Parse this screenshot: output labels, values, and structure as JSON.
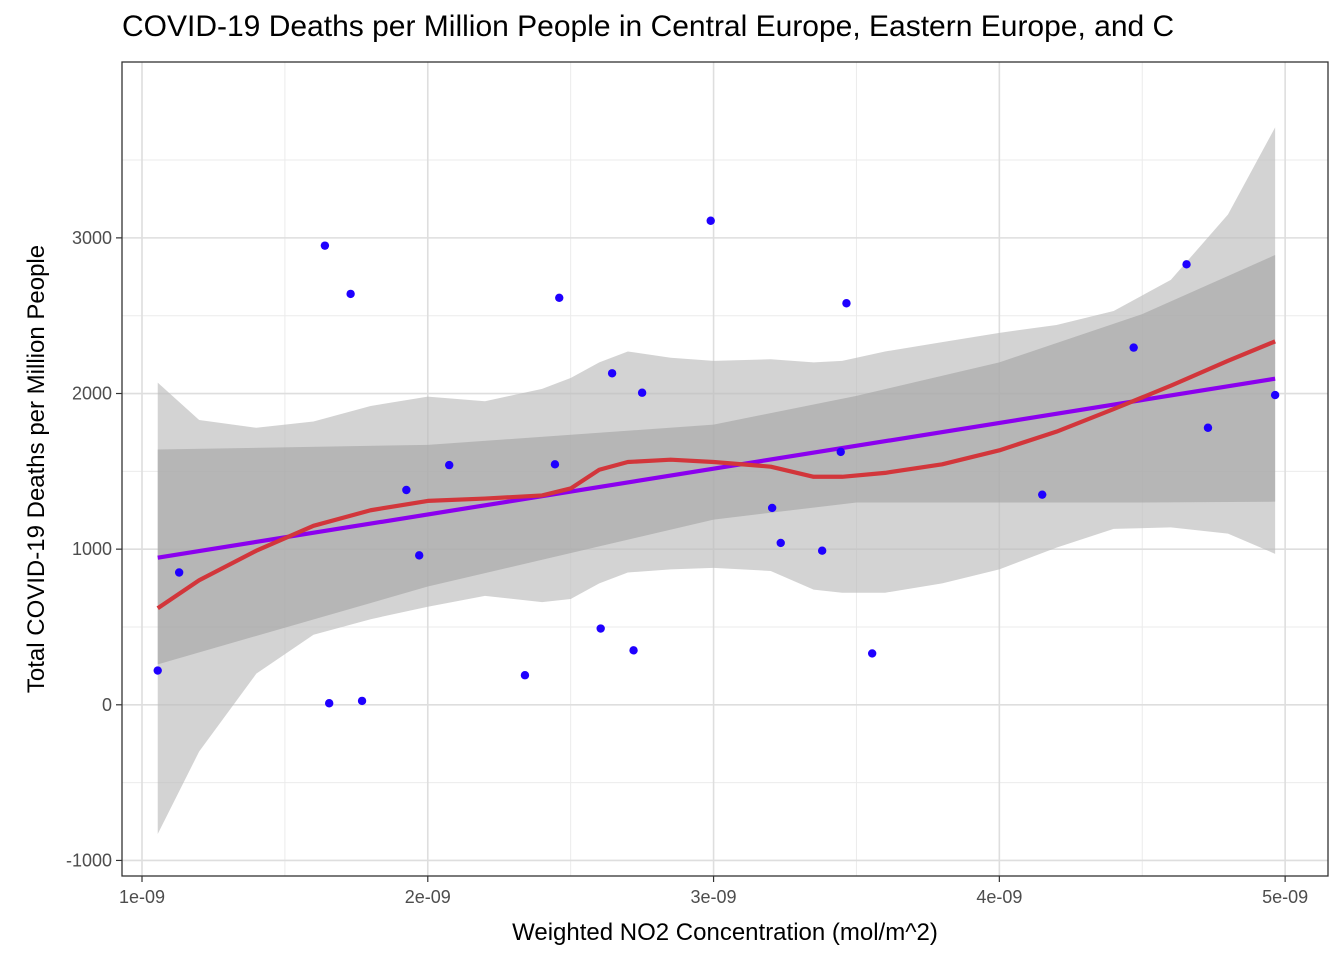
{
  "chart_data": {
    "type": "scatter",
    "title": "COVID-19 Deaths per Million People in Central Europe, Eastern Europe, and C",
    "xlabel": "Weighted NO2 Concentration (mol/m^2)",
    "ylabel": "Total COVID-19 Deaths per Million People",
    "xlim": [
      9.3e-10,
      5.15e-09
    ],
    "ylim": [
      -1100,
      4130
    ],
    "x_ticks": [
      1e-09,
      2e-09,
      3e-09,
      4e-09,
      5e-09
    ],
    "x_tick_labels": [
      "1e-09",
      "2e-09",
      "3e-09",
      "4e-09",
      "5e-09"
    ],
    "y_ticks": [
      -1000,
      0,
      1000,
      2000,
      3000
    ],
    "y_tick_labels": [
      "-1000",
      "0",
      "1000",
      "2000",
      "3000"
    ],
    "grid": true,
    "points": {
      "color": "#1f00ff",
      "x": [
        1.055e-09,
        1.13e-09,
        1.64e-09,
        1.655e-09,
        1.73e-09,
        1.77e-09,
        1.925e-09,
        1.97e-09,
        2.075e-09,
        2.34e-09,
        2.445e-09,
        2.46e-09,
        2.605e-09,
        2.645e-09,
        2.72e-09,
        2.75e-09,
        2.99e-09,
        3.205e-09,
        3.235e-09,
        3.38e-09,
        3.445e-09,
        3.465e-09,
        3.555e-09,
        4.15e-09,
        4.47e-09,
        4.655e-09,
        4.73e-09,
        4.965e-09
      ],
      "y": [
        220,
        850,
        2950,
        10,
        2640,
        25,
        1380,
        960,
        1540,
        190,
        1545,
        2615,
        490,
        2130,
        350,
        2005,
        3110,
        1265,
        1040,
        990,
        1625,
        2580,
        330,
        1350,
        2295,
        2830,
        1780,
        1990
      ]
    },
    "series": [
      {
        "kind": "linear-fit",
        "color": "#8b00ee",
        "x": [
          1.055e-09,
          4.965e-09
        ],
        "y": [
          945,
          2095
        ]
      },
      {
        "kind": "loess-fit",
        "color": "#d2363b",
        "x": [
          1.055e-09,
          1.2e-09,
          1.4e-09,
          1.6e-09,
          1.8e-09,
          2e-09,
          2.2e-09,
          2.4e-09,
          2.5e-09,
          2.6e-09,
          2.7e-09,
          2.85e-09,
          3e-09,
          3.2e-09,
          3.35e-09,
          3.45e-09,
          3.6e-09,
          3.8e-09,
          4e-09,
          4.2e-09,
          4.4e-09,
          4.6e-09,
          4.8e-09,
          4.965e-09
        ],
        "y": [
          620,
          800,
          990,
          1150,
          1250,
          1310,
          1325,
          1345,
          1390,
          1510,
          1560,
          1575,
          1560,
          1530,
          1465,
          1465,
          1490,
          1545,
          1635,
          1755,
          1900,
          2050,
          2210,
          2335
        ]
      }
    ],
    "bands": [
      {
        "kind": "loess-confidence",
        "color": "#bbbbbb",
        "x": [
          1.055e-09,
          1.2e-09,
          1.4e-09,
          1.6e-09,
          1.8e-09,
          2e-09,
          2.2e-09,
          2.4e-09,
          2.5e-09,
          2.6e-09,
          2.7e-09,
          2.85e-09,
          3e-09,
          3.2e-09,
          3.35e-09,
          3.45e-09,
          3.6e-09,
          3.8e-09,
          4e-09,
          4.2e-09,
          4.4e-09,
          4.6e-09,
          4.8e-09,
          4.965e-09
        ],
        "upper": [
          2070,
          1830,
          1780,
          1820,
          1920,
          1980,
          1950,
          2030,
          2100,
          2200,
          2270,
          2230,
          2210,
          2220,
          2200,
          2210,
          2270,
          2330,
          2390,
          2440,
          2530,
          2730,
          3150,
          3710
        ],
        "lower": [
          -830,
          -300,
          200,
          450,
          550,
          630,
          700,
          660,
          680,
          780,
          850,
          870,
          880,
          860,
          740,
          720,
          720,
          780,
          870,
          1010,
          1130,
          1140,
          1100,
          970
        ]
      },
      {
        "kind": "linear-confidence",
        "color": "#a6a6a6",
        "x": [
          1.055e-09,
          2e-09,
          3e-09,
          3.5e-09,
          4e-09,
          4.5e-09,
          4.965e-09
        ],
        "upper": [
          1640,
          1670,
          1800,
          1985,
          2200,
          2510,
          2890
        ],
        "lower": [
          260,
          760,
          1190,
          1300,
          1300,
          1300,
          1305
        ]
      }
    ]
  }
}
